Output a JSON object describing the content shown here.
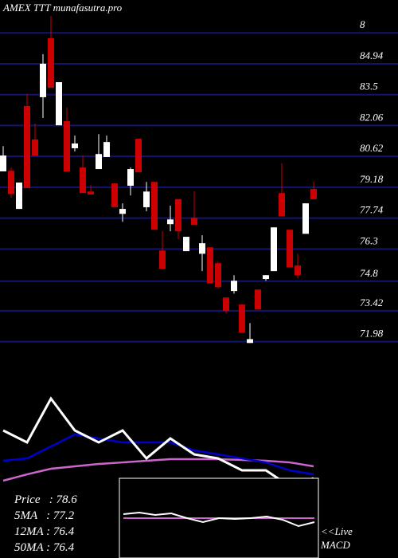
{
  "chart_data": {
    "type": "candlestick",
    "title": "AMEX  TTT munafasutra.pro",
    "up_color": "#ffffff",
    "down_color": "#cc0000",
    "grid_color": "#141470",
    "ylim": [
      71.0,
      87.8
    ],
    "yticks": [
      {
        "value": 86.38,
        "label": "8"
      },
      84.94,
      83.5,
      82.06,
      80.62,
      79.18,
      77.74,
      76.3,
      74.8,
      73.42,
      71.98
    ],
    "open": [
      79.92,
      79.95,
      78.17,
      82.97,
      81.41,
      83.38,
      86.13,
      82.07,
      82.26,
      81.0,
      80.1,
      78.98,
      80.03,
      80.59,
      79.36,
      77.94,
      79.25,
      81.44,
      78.25,
      79.43,
      76.23,
      77.46,
      78.62,
      76.2,
      77.76,
      76.08,
      76.38,
      75.64,
      74.04,
      74.34,
      73.71,
      71.92,
      74.41,
      74.9,
      75.27,
      78.91,
      77.2,
      75.53,
      77.01,
      79.1
    ],
    "high": [
      81.1,
      80.1,
      79.4,
      83.53,
      82.15,
      85.39,
      87.17,
      84.08,
      82.89,
      81.59,
      80.66,
      79.28,
      81.66,
      81.59,
      79.36,
      78.43,
      80.1,
      81.44,
      79.43,
      79.43,
      77.13,
      78.32,
      78.62,
      76.87,
      78.99,
      76.94,
      76.38,
      75.71,
      74.04,
      75.08,
      73.71,
      72.85,
      74.41,
      75.08,
      77.31,
      80.29,
      77.2,
      76.08,
      78.43,
      79.43
    ],
    "low": [
      79.92,
      78.7,
      78.17,
      79.14,
      80.66,
      82.41,
      83.82,
      82.07,
      79.92,
      80.85,
      78.91,
      78.84,
      80.03,
      80.59,
      78.25,
      77.57,
      78.8,
      79.88,
      78.06,
      77.2,
      75.38,
      77.13,
      76.75,
      76.2,
      77.42,
      75.27,
      74.71,
      74.45,
      73.3,
      74.22,
      72.4,
      71.92,
      73.48,
      74.82,
      75.27,
      77.83,
      75.45,
      74.93,
      77.01,
      78.62
    ],
    "close": [
      80.66,
      78.87,
      79.4,
      79.14,
      80.66,
      84.94,
      83.82,
      84.08,
      79.92,
      81.22,
      78.91,
      78.84,
      80.73,
      81.29,
      78.25,
      78.17,
      80.03,
      79.88,
      78.98,
      77.2,
      75.38,
      77.68,
      77.13,
      76.87,
      77.42,
      76.57,
      74.71,
      74.52,
      73.41,
      74.82,
      72.4,
      72.1,
      73.48,
      75.08,
      77.31,
      77.83,
      75.45,
      75.08,
      78.43,
      78.62
    ],
    "ma_panel": {
      "ylim": [
        70,
        88
      ],
      "x": [
        0,
        3,
        6,
        9,
        12,
        15,
        18,
        21,
        24,
        27,
        30,
        33,
        36,
        39
      ],
      "series": [
        {
          "name": "Price",
          "color": "#ffffff",
          "values": [
            80.7,
            78.88,
            85.57,
            80.7,
            78.88,
            80.7,
            76.44,
            79.48,
            77.05,
            76.44,
            74.62,
            74.62,
            72.19,
            73.4
          ]
        },
        {
          "name": "12MA",
          "color": "#0000cc",
          "values": [
            76.08,
            76.44,
            78.27,
            80.09,
            79.48,
            78.88,
            78.88,
            78.88,
            77.66,
            77.05,
            76.44,
            75.83,
            74.62,
            74.01
          ]
        },
        {
          "name": "50MA",
          "color": "#cc66cc",
          "values": [
            73.04,
            74.01,
            74.86,
            75.23,
            75.59,
            75.83,
            76.08,
            76.32,
            76.32,
            76.32,
            76.2,
            76.08,
            75.83,
            75.23
          ]
        }
      ]
    },
    "macd_panel": {
      "ylim": [
        -1,
        1
      ],
      "series": [
        {
          "color": "#ffffff",
          "values": [
            0.1,
            0.14,
            0.08,
            0.12,
            0,
            -0.1,
            0,
            -0.02,
            0,
            0.04,
            -0.04,
            -0.2,
            -0.1
          ]
        },
        {
          "color": "#cc66cc",
          "values": [
            0,
            0,
            0,
            0,
            0,
            0,
            0,
            0,
            0,
            0,
            0,
            0,
            0
          ]
        }
      ],
      "labels": [
        "<<Live",
        "MACD"
      ]
    },
    "info": [
      "Price   : 78.6",
      "5MA   : 77.2",
      "12MA : 76.4",
      "50MA : 76.4"
    ]
  }
}
